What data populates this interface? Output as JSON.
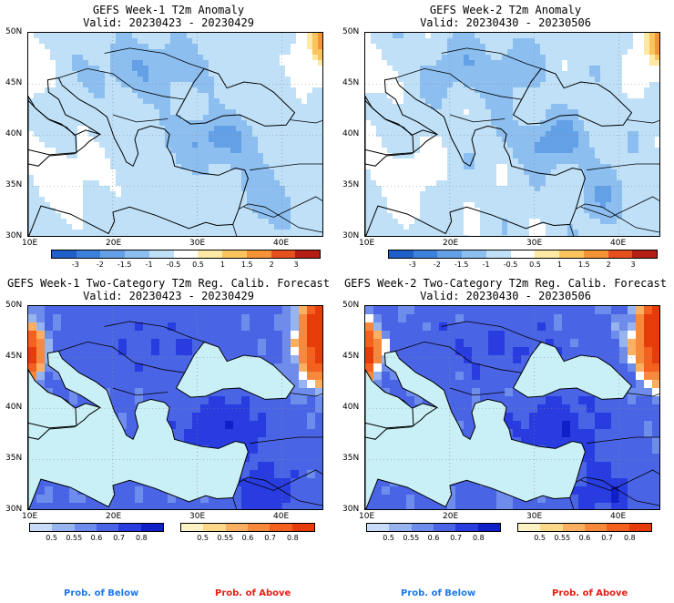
{
  "panels": [
    {
      "title": "GEFS Week-1 T2m Anomaly",
      "valid": "Valid: 20230423 - 20230429"
    },
    {
      "title": "GEFS Week-2 T2m Anomaly",
      "valid": "Valid: 20230430 - 20230506"
    },
    {
      "title": "GEFS Week-1 Two-Category T2m Reg. Calib. Forecast",
      "valid": "Valid: 20230423 - 20230429"
    },
    {
      "title": "GEFS Week-2 Two-Category T2m Reg. Calib. Forecast",
      "valid": "Valid: 20230430 - 20230506"
    }
  ],
  "lat_labels": [
    "50N",
    "45N",
    "40N",
    "35N",
    "30N"
  ],
  "lon_labels": [
    "10E",
    "20E",
    "30E",
    "40E"
  ],
  "anomaly_colorbar": {
    "labels": [
      "-3",
      "-2",
      "-1.5",
      "-1",
      "-0.5",
      "0.5",
      "1",
      "1.5",
      "2",
      "3"
    ],
    "colors": [
      "#1e5fc8",
      "#3c82dc",
      "#64a0e6",
      "#8cbef0",
      "#bfe0f7",
      "#ffffff",
      "#fde9a3",
      "#fbc45c",
      "#f49437",
      "#e6501e",
      "#b41e14"
    ]
  },
  "below_colorbar": {
    "labels": [
      "0.5",
      "0.55",
      "0.6",
      "0.7",
      "0.8"
    ],
    "colors": [
      "#c8dcf8",
      "#96b4f0",
      "#6e8ceb",
      "#4a64e6",
      "#283ce0",
      "#1020c8"
    ]
  },
  "above_colorbar": {
    "labels": [
      "0.5",
      "0.55",
      "0.6",
      "0.7",
      "0.8"
    ],
    "colors": [
      "#fdf2c4",
      "#fcd98a",
      "#fab060",
      "#f7893c",
      "#f4601e",
      "#e63c0a"
    ]
  },
  "legend": {
    "below": "Prob. of Below",
    "above": "Prob. of Above",
    "below_color": "#1e78e6",
    "above_color": "#e61e14"
  }
}
